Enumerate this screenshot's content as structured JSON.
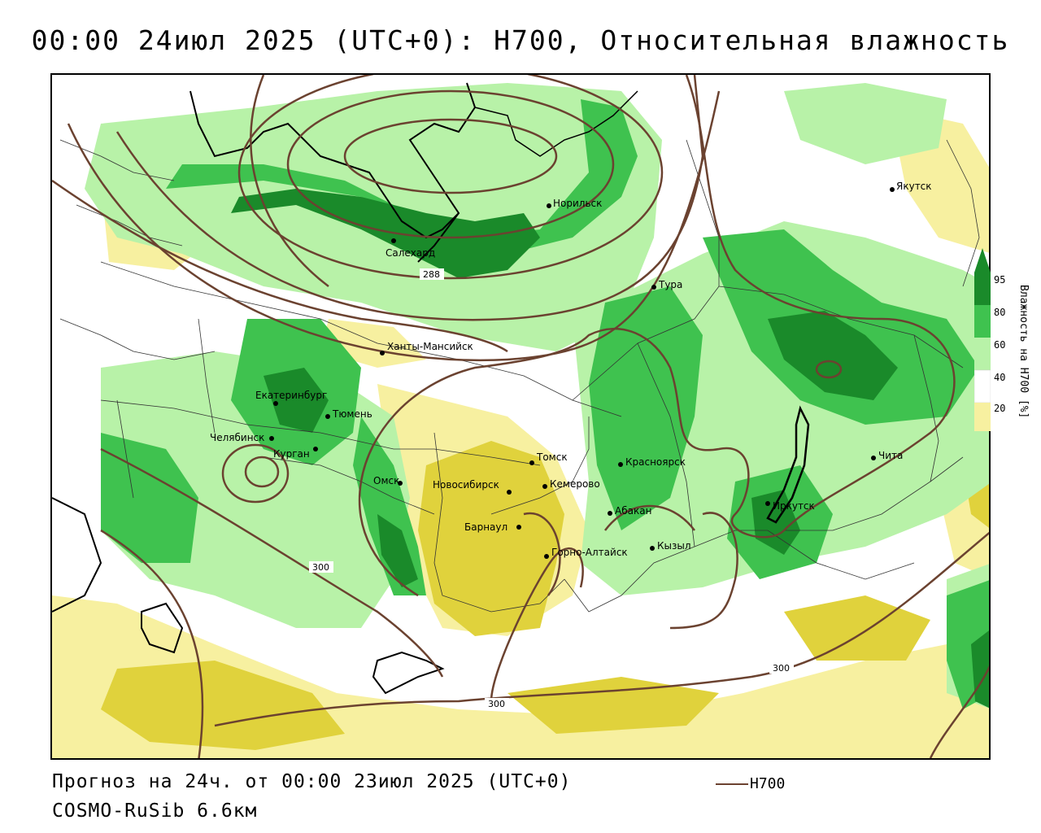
{
  "title": "00:00 24июл 2025 (UTC+0): H700, Относительная влажность",
  "footer": {
    "forecast": "Прогноз на 24ч. от 00:00 23июл 2025 (UTC+0)",
    "model": "COSMO-RuSib 6.6км",
    "contour_legend": "H700"
  },
  "colors": {
    "h700_contour": "#6b4230",
    "rh_95": "#1a8a2a",
    "rh_80": "#3fc24f",
    "rh_60": "#b8f2a8",
    "rh_40": "#ffffff",
    "rh_20": "#f7f0a0",
    "rh_0": "#e0d23c"
  },
  "legend": {
    "title": "Влажность на H700 [%]",
    "ticks": [
      "95",
      "80",
      "60",
      "40",
      "20"
    ]
  },
  "contour_labels": [
    "288",
    "300",
    "300",
    "300"
  ],
  "cities": [
    {
      "name": "Якутск"
    },
    {
      "name": "Норильск"
    },
    {
      "name": "Салехард"
    },
    {
      "name": "Тура"
    },
    {
      "name": "Ханты-Мансийск"
    },
    {
      "name": "Екатеринбург"
    },
    {
      "name": "Тюмень"
    },
    {
      "name": "Челябинск"
    },
    {
      "name": "Курган"
    },
    {
      "name": "Омск"
    },
    {
      "name": "Новосибирск"
    },
    {
      "name": "Томск"
    },
    {
      "name": "Кемерово"
    },
    {
      "name": "Красноярск"
    },
    {
      "name": "Барнаул"
    },
    {
      "name": "Абакан"
    },
    {
      "name": "Горно-Алтайск"
    },
    {
      "name": "Кызыл"
    },
    {
      "name": "Иркутск"
    },
    {
      "name": "Чита"
    }
  ]
}
